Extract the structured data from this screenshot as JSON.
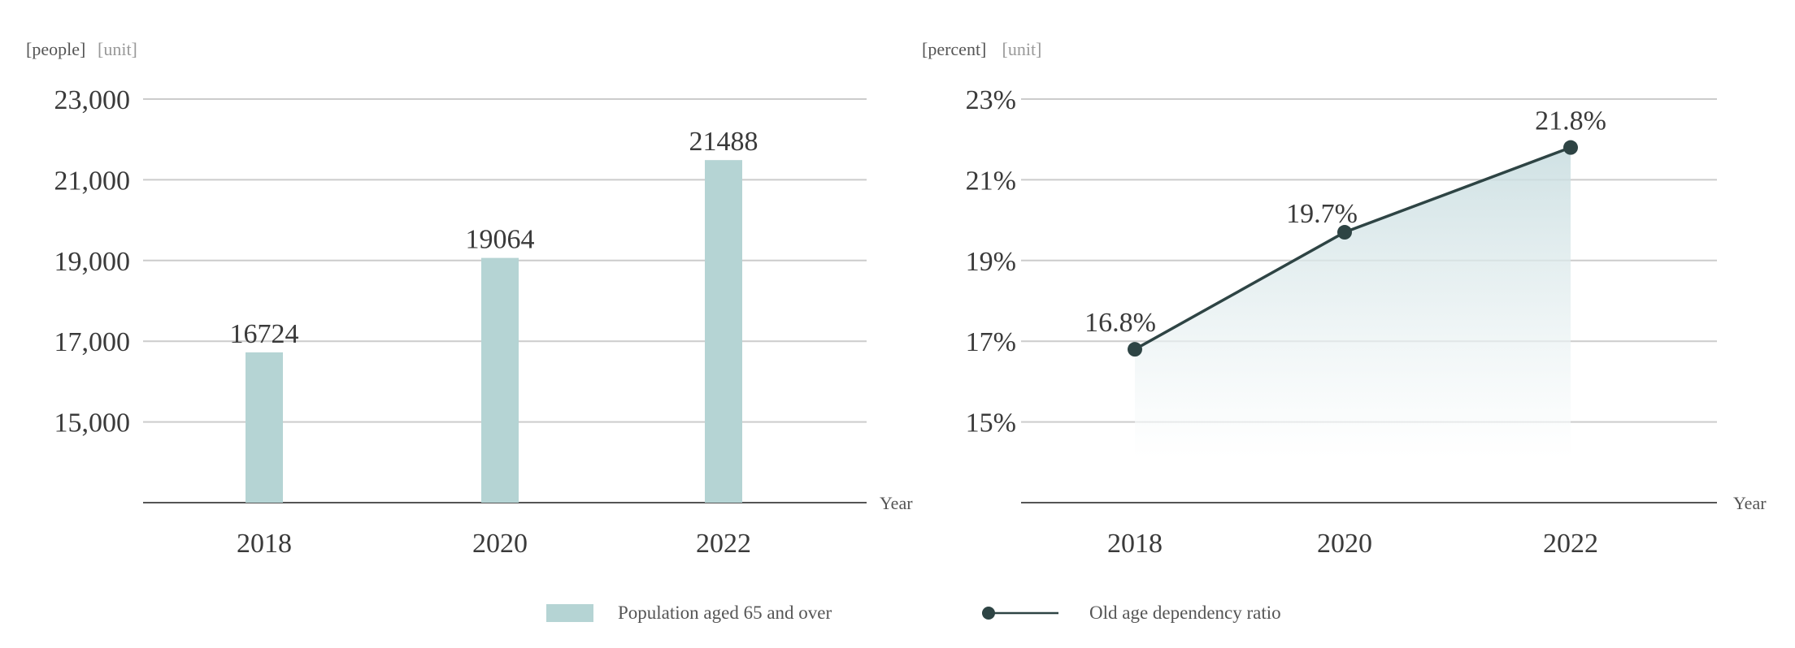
{
  "colors": {
    "bar": "#b5d4d4",
    "line": "#2e4444",
    "area_top": "#cfe1e4",
    "grid": "#cccccc",
    "axis": "#555555"
  },
  "chart_data": [
    {
      "type": "bar",
      "unit_label": "[people]",
      "unit_label_en": "[unit]",
      "xlabel": "Year",
      "categories": [
        "2018",
        "2020",
        "2022"
      ],
      "values": [
        16724,
        19064,
        21488
      ],
      "data_labels": [
        "16724",
        "19064",
        "21488"
      ],
      "yticks": [
        15000,
        17000,
        19000,
        21000,
        23000
      ],
      "ytick_labels": [
        "15,000",
        "17,000",
        "19,000",
        "21,000",
        "23,000"
      ],
      "ylim": [
        13000,
        23000
      ],
      "grid": true
    },
    {
      "type": "line",
      "unit_label": "[percent]",
      "unit_label_en": "[unit]",
      "xlabel": "Year",
      "categories": [
        "2018",
        "2020",
        "2022"
      ],
      "values": [
        16.8,
        19.7,
        21.8
      ],
      "data_labels": [
        "16.8%",
        "19.7%",
        "21.8%"
      ],
      "yticks": [
        15,
        17,
        19,
        21,
        23
      ],
      "ytick_labels": [
        "15%",
        "17%",
        "19%",
        "21%",
        "23%"
      ],
      "ylim": [
        13,
        23
      ],
      "grid": true,
      "area_fill": true
    }
  ],
  "legend": {
    "position": "bottom-center",
    "items": [
      {
        "label": "Population aged 65 and over",
        "icon": "bar-swatch"
      },
      {
        "label": "Old age dependency ratio",
        "icon": "line-marker"
      }
    ]
  }
}
